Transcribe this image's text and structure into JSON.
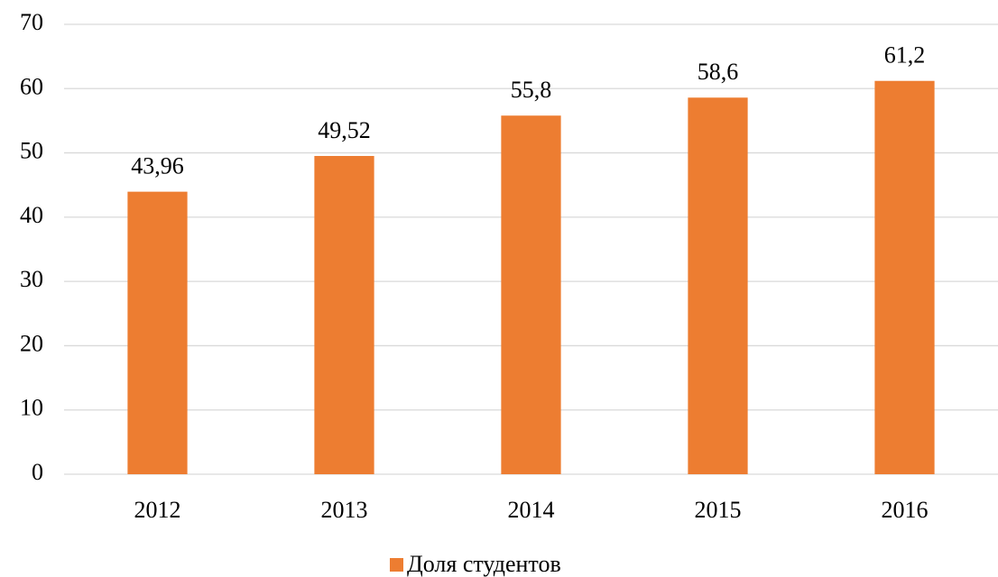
{
  "chart_data": {
    "type": "bar",
    "categories": [
      "2012",
      "2013",
      "2014",
      "2015",
      "2016"
    ],
    "series": [
      {
        "name": "Доля студентов",
        "color": "#ed7d31",
        "values": [
          43.96,
          49.52,
          55.8,
          58.6,
          61.2
        ],
        "value_labels": [
          "43,96",
          "49,52",
          "55,8",
          "58,6",
          "61,2"
        ]
      }
    ],
    "ylim": [
      0,
      70
    ],
    "yticks": [
      0,
      10,
      20,
      30,
      40,
      50,
      60,
      70
    ],
    "grid": true,
    "legend": "bottom"
  }
}
